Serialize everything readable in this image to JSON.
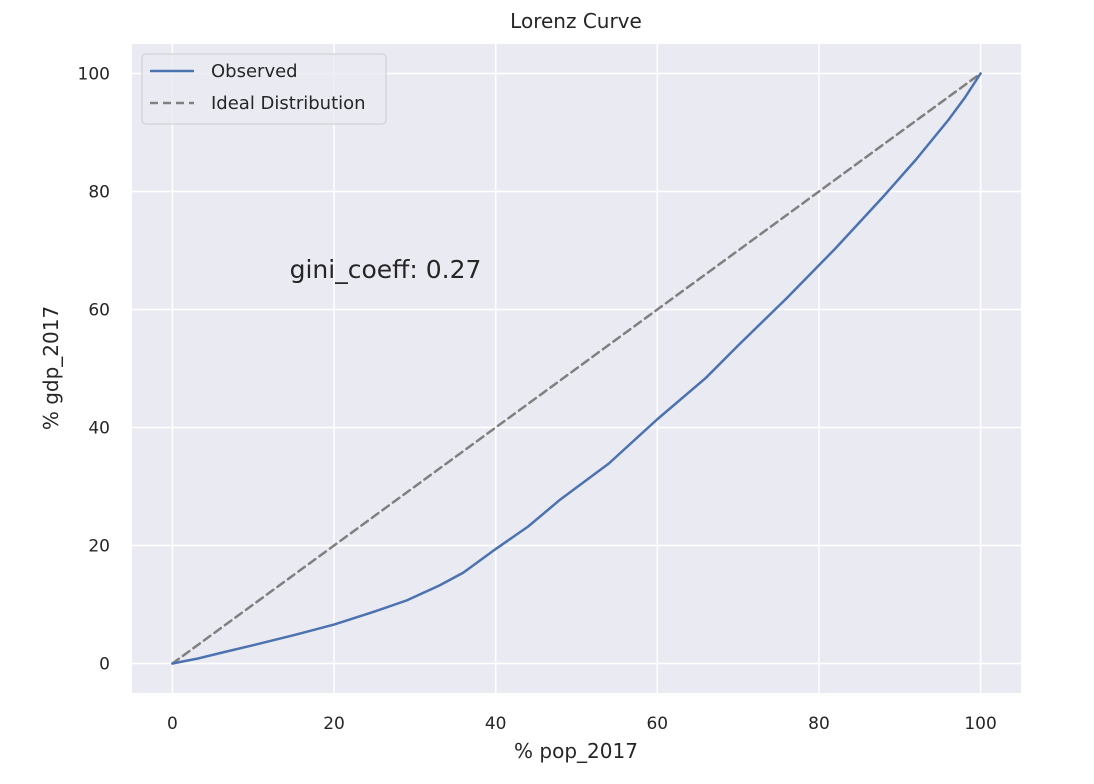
{
  "chart_data": {
    "type": "line",
    "title": "Lorenz Curve",
    "xlabel": "% pop_2017",
    "ylabel": "% gdp_2017",
    "xlim": [
      -5,
      105
    ],
    "ylim": [
      -5,
      105
    ],
    "xticks": [
      0,
      20,
      40,
      60,
      80,
      100
    ],
    "yticks": [
      0,
      20,
      40,
      60,
      80,
      100
    ],
    "grid": true,
    "legend": "upper-left",
    "series": [
      {
        "name": "Observed",
        "style": "solid",
        "color": "#4c72b0",
        "points": [
          [
            0,
            0
          ],
          [
            3,
            0.8
          ],
          [
            6,
            1.8
          ],
          [
            10,
            3.1
          ],
          [
            15,
            4.8
          ],
          [
            20,
            6.6
          ],
          [
            25,
            8.8
          ],
          [
            29,
            10.7
          ],
          [
            33,
            13.2
          ],
          [
            36,
            15.4
          ],
          [
            40,
            19.4
          ],
          [
            44,
            23.2
          ],
          [
            48,
            27.8
          ],
          [
            54,
            33.9
          ],
          [
            60,
            41.4
          ],
          [
            66,
            48.4
          ],
          [
            70,
            53.9
          ],
          [
            76,
            61.9
          ],
          [
            82,
            70.3
          ],
          [
            88,
            79.2
          ],
          [
            92,
            85.4
          ],
          [
            96,
            92.1
          ],
          [
            98,
            95.8
          ],
          [
            100,
            100
          ]
        ]
      },
      {
        "name": "Ideal Distribution",
        "style": "dashed",
        "color": "#808080",
        "points": [
          [
            0,
            0
          ],
          [
            100,
            100
          ]
        ]
      }
    ],
    "annotations": [
      {
        "text": "gini_coeff: 0.27",
        "x": 14.5,
        "y": 65.3
      }
    ],
    "background": "#eaeaf2",
    "grid_color": "#ffffff"
  }
}
